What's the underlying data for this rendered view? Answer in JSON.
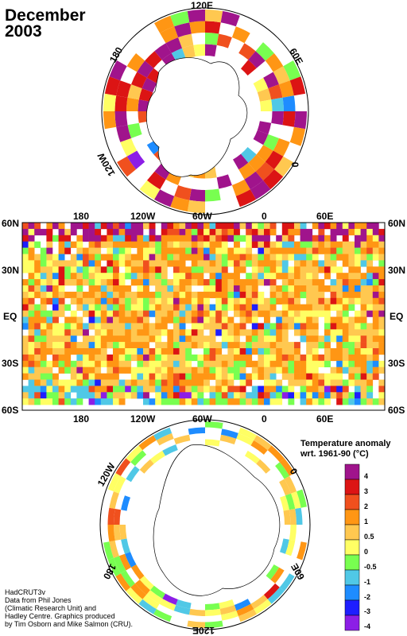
{
  "title": {
    "month": "December",
    "year": "2003"
  },
  "north_polar_labels": {
    "top": "120E",
    "right": "60E",
    "left": "180",
    "bottom_left": "120W",
    "bottom_right": "0"
  },
  "map_labels": {
    "top_lon": [
      "180",
      "120W",
      "60W",
      "0",
      "60E"
    ],
    "bottom_lon": [
      "180",
      "120W",
      "60W",
      "0",
      "60E"
    ],
    "left_lat": [
      "60N",
      "30N",
      "EQ",
      "30S",
      "60S"
    ],
    "right_lat": [
      "60N",
      "30N",
      "EQ",
      "30S",
      "60S"
    ]
  },
  "south_polar_labels": {
    "left": "120W",
    "right": "0",
    "bottom_left": "180",
    "bottom_right": "60E",
    "bottom": "120E"
  },
  "legend": {
    "title_line1": "Temperature anomaly",
    "title_line2": "wrt. 1961-90  (°C)",
    "labels": [
      "4",
      "3",
      "2",
      "1",
      "0.5",
      "0",
      "-0.5",
      "-1",
      "-2",
      "-3",
      "-4"
    ],
    "colors": [
      "#a0148c",
      "#dc1414",
      "#f0501e",
      "#ff9614",
      "#ffc850",
      "#ffff64",
      "#78ff50",
      "#50c8e6",
      "#1e8cff",
      "#1e1eff",
      "#8c1ee6"
    ]
  },
  "credits": [
    "HadCRUT3v",
    "Data from Phil Jones",
    "(Climatic Research Unit) and",
    "Hadley Centre.  Graphics produced",
    "by Tim Osborn and Mike Salmon (CRU)."
  ]
}
